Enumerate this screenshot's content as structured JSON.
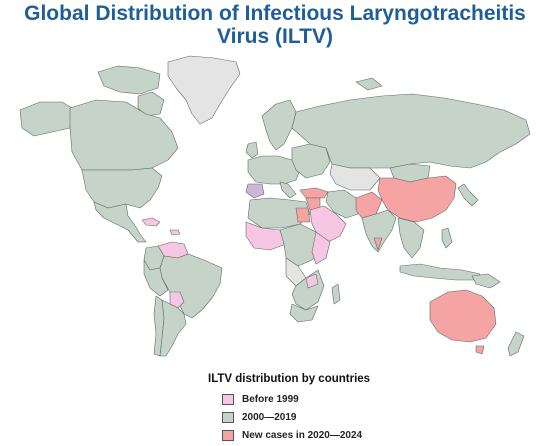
{
  "title": {
    "line1": "Global Distribution of Infectious Laryngotracheitis",
    "line2": "Virus (ILTV)"
  },
  "colors": {
    "title": "#1f5e99",
    "before_1999": "#f7c6e3",
    "y2000_2019": "#c5d3c9",
    "new_2020_2024": "#f6a3a3",
    "no_data": "#e4e4e4",
    "border": "#5f6d66"
  },
  "legend": {
    "title": "ILTV distribution by countries",
    "items": [
      {
        "label": "Before 1999",
        "color": "#f7c6e3"
      },
      {
        "label": "2000—2019",
        "color": "#c5d3c9"
      },
      {
        "label": "New cases in 2020—2024",
        "color": "#f6a3a3"
      }
    ]
  }
}
